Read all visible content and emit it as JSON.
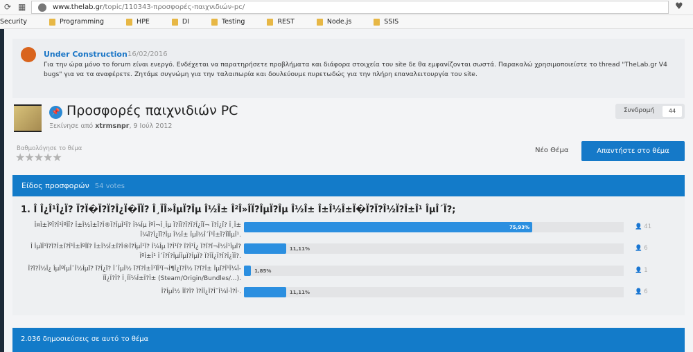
{
  "browser": {
    "url_domain": "www.thelab.gr",
    "url_path": "/topic/110343-προσφορές-παιχνιδιών-pc/",
    "reload_icon": "reload-icon",
    "apps_icon": "apps-grid-icon",
    "globe_icon": "globe-icon",
    "favorite_icon": "heart-icon"
  },
  "bookmarks": [
    "Security",
    "Programming",
    "HPE",
    "DI",
    "Testing",
    "REST",
    "Node.js",
    "SSIS"
  ],
  "announcement": {
    "title": "Under Construction",
    "date": "16/02/2016",
    "text": "Για την ώρα μόνο το forum είναι ενεργό. Ενδέχεται να παρατηρήσετε προβλήματα και διάφορα στοιχεία του site δε θα εμφανίζονται σωστά. Παρακαλώ χρησιμοποιείστε το thread \"TheLab.gr V4 bugs\" για να τα αναφέρετε. Ζητάμε συγνώμη για την ταλαιπωρία και δουλεύουμε πυρετωδώς για την πλήρη επαναλειτουργία του site."
  },
  "topic": {
    "title": "Προσφορές παιχνιδιών PC",
    "started_prefix": "Ξεκίνησε από ",
    "author": "xtrmsnpr",
    "date": ", 9 Ιούλ 2012",
    "subscribe_label": "Συνδρομή",
    "subscribe_count": "44",
    "rating_label": "Βαθμολόγησε το θέμα",
    "rating_value": 0,
    "rating_max": 5,
    "new_topic": "Νέο Θέμα",
    "reply": "Απαντήστε στο θέμα"
  },
  "poll": {
    "title": "Είδος προσφορών",
    "votes": "54 votes",
    "question": "1. Î Î¿Î¹Î¿Ï? Ï?Ï�Ï?Ï?Î¿Ï�ÏÏ? Î¸ÏÎ»ÎµÏ?Îµ Î½Î± Î²Î»ÎÏ?ÎµÏ?Îµ Î½Î± Î±Î½Î±Ï�Ï?Ï?Î½Ï?Î±Î¹ ÎµÎ´Ï?;",
    "options": [
      {
        "label": "Î¤Î±ÎºÏ?Î¹ÎºÎÏ? Î±Î½Î±Ï?Î®Ï?ÎµÎ¹Ï? Î¼Îµ ÎºÎ¬Î¸Îµ Ï?ÎÏ?Ï?Ï?Î¿ÏÏ¬ Ï?Î¿Ï? Î¸Î± Î¼Ï?Î¿ÏÏ?Îµ Î½Î± ÎµÎ½Î´Î¹Î±Ï?ÎÏÎµÎ¹.",
        "percent": 75.93,
        "percent_label": "75,93%",
        "count": "41"
      },
      {
        "label": "Î ÎµÏÎ¹Ï?Ï?Î±Ï?Î¹Î±ÎºÎÏ? Î±Î½Î±Ï?Î®Ï?ÎµÎ¹Ï? Î¼Îµ Ï?Î¹Ï? Ï?Î¹Î¿ Ï?Ï?Ï¬Î½Î¹ÎµÏ? ÎºÎ±Î¹ Î´Ï?Ï?ÎµÎÎµÏ?ÎµÏ? Ï?ÏÎ¿Ï?Ï?Î¿ÏÏ?.",
        "percent": 11.11,
        "percent_label": "11,11%",
        "count": "6"
      },
      {
        "label": "Î?Ï?Î½Î¿ ÎµÎºÎµÎ¯Î½ÎµÏ? Ï?Î¿Ï? Î´ÎµÎ½ Ï?Ï?Î±Î¹ÏÎ¹Ï¬Î¶Î¿Ï?Î½ Ï?Ï?Î± ÎµÏ?Î¹Î¼Î­ÏÎ¿Ï?Ï? Î¸ÏÎ¼Î±Ï?Î± (Steam/Origin/Bundles/...).",
        "percent": 1.85,
        "percent_label": "1,85%",
        "count": "1"
      },
      {
        "label": "Î?ÎµÎ½ ÎÏ?Ï? Ï?ÎÎ¿Ï?Î¯Î¼Î·Ï?Î·.",
        "percent": 11.11,
        "percent_label": "11,11%",
        "count": "6"
      }
    ],
    "voter_icon": "user-icon",
    "accent": "#2b8fe0"
  },
  "posts_bar": "2.036 δημοσιεύσεις σε αυτό το θέμα"
}
